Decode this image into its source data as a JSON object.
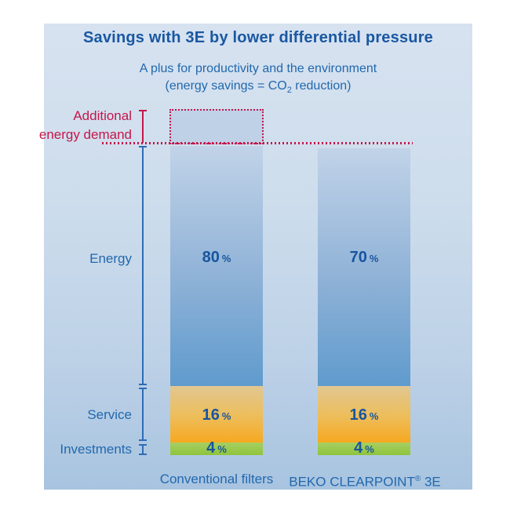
{
  "title": "Savings with 3E by lower differential pressure",
  "subtitle": {
    "line1": "A plus for productivity and the environment",
    "co2_prefix": "(energy savings = CO",
    "co2_sub": "2",
    "co2_suffix": " reduction)"
  },
  "annotations": {
    "additional_line1": "Additional",
    "additional_line2": "energy demand"
  },
  "axis_labels": {
    "energy": "Energy",
    "service": "Service",
    "investments": "Investments"
  },
  "bars": [
    {
      "label": "Conventional filters",
      "energy": {
        "value": "80",
        "unit": "%"
      },
      "service": {
        "value": "16",
        "unit": "%"
      },
      "invest": {
        "value": "4",
        "unit": "%"
      }
    },
    {
      "label_prefix": "BEKO CLEARPOINT",
      "label_reg": "®",
      "label_suffix": " 3E",
      "energy": {
        "value": "70",
        "unit": "%"
      },
      "service": {
        "value": "16",
        "unit": "%"
      },
      "invest": {
        "value": "4",
        "unit": "%"
      }
    }
  ],
  "colors": {
    "title_blue": "#1a58a2",
    "text_blue": "#2268ae",
    "annotation_red": "#c5164b",
    "axis_blue": "#2e6cb5",
    "energy_top": "#c1d3e8",
    "energy_bottom": "#5f9bcd",
    "service_top": "#e1c792",
    "service_bottom": "#f7a820",
    "invest_green": "#9dca52",
    "panel_bg_top": "#d7e2f0",
    "panel_bg_bottom": "#a8c4e0"
  },
  "chart_data": {
    "type": "bar",
    "stacked": true,
    "title": "Savings with 3E by lower differential pressure",
    "subtitle": "A plus for productivity and the environment (energy savings = CO₂ reduction)",
    "categories": [
      "Conventional filters",
      "BEKO CLEARPOINT® 3E"
    ],
    "series": [
      {
        "name": "Energy",
        "values": [
          80,
          70
        ],
        "unit": "%"
      },
      {
        "name": "Service",
        "values": [
          16,
          16
        ],
        "unit": "%"
      },
      {
        "name": "Investments",
        "values": [
          4,
          4
        ],
        "unit": "%"
      }
    ],
    "annotation": {
      "label": "Additional energy demand",
      "applies_to": "Conventional filters",
      "estimated_value_pct": 12,
      "style": "red dotted outline box stacked above left bar, red dotted reference line across both bars"
    },
    "value_labels": [
      "80 %",
      "70 %",
      "16 %",
      "4 %"
    ],
    "row_labels": [
      "Energy",
      "Service",
      "Investments"
    ],
    "grid": false,
    "legend_position": "none"
  }
}
